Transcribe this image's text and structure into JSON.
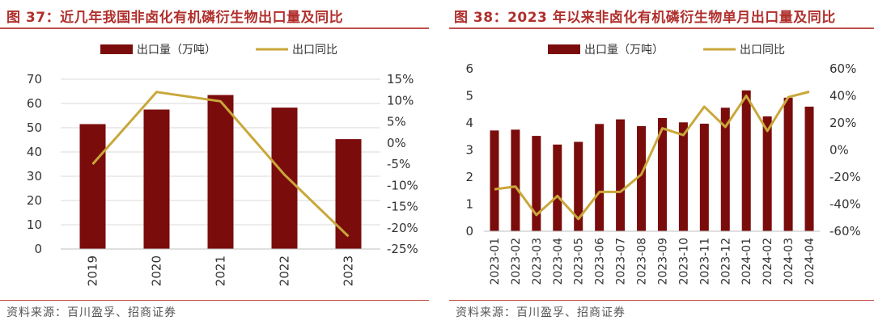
{
  "colors": {
    "bar": "#7b0c0c",
    "line": "#c9a73a",
    "title": "#b0302c",
    "rule": "#c0504d",
    "grid": "#d9d9d9"
  },
  "charts": [
    {
      "title": "图 37：近几年我国非卤化有机磷衍生物出口量及同比",
      "source": "资料来源：百川盈孚、招商证券",
      "legend": {
        "bar_label": "出口量（万吨）",
        "line_label": "出口同比"
      }
    },
    {
      "title": "图 38：2023 年以来非卤化有机磷衍生物单月出口量及同比",
      "source": "资料来源：百川盈孚、招商证券",
      "legend": {
        "bar_label": "出口量（万吨）",
        "line_label": "出口同比"
      }
    }
  ],
  "chart_data": [
    {
      "type": "bar",
      "categories": [
        "2019",
        "2020",
        "2021",
        "2022",
        "2023"
      ],
      "series": [
        {
          "name": "出口量（万吨）",
          "type": "bar",
          "axis": "left",
          "values": [
            51.5,
            57.5,
            63.5,
            58.3,
            45.3
          ]
        },
        {
          "name": "出口同比",
          "type": "line",
          "axis": "right",
          "values": [
            -5.0,
            12.0,
            9.8,
            -7.5,
            -22.0
          ]
        }
      ],
      "y_left": {
        "min": 0,
        "max": 70,
        "ticks": [
          "0",
          "10",
          "20",
          "30",
          "40",
          "50",
          "60",
          "70"
        ]
      },
      "y_right": {
        "min": -25,
        "max": 15,
        "ticks": [
          "-25%",
          "-20%",
          "-15%",
          "-10%",
          "-5%",
          "0%",
          "5%",
          "10%",
          "15%"
        ]
      },
      "grid": true,
      "legend_position": "top"
    },
    {
      "type": "bar",
      "categories": [
        "2023-01",
        "2023-02",
        "2023-03",
        "2023-04",
        "2023-05",
        "2023-06",
        "2023-07",
        "2023-08",
        "2023-09",
        "2023-10",
        "2023-11",
        "2023-12",
        "2024-01",
        "2024-02",
        "2024-03",
        "2024-04"
      ],
      "series": [
        {
          "name": "出口量（万吨）",
          "type": "bar",
          "axis": "left",
          "values": [
            3.72,
            3.75,
            3.52,
            3.2,
            3.3,
            3.96,
            4.13,
            3.88,
            4.18,
            4.02,
            3.97,
            4.56,
            5.2,
            4.24,
            4.93,
            4.6
          ]
        },
        {
          "name": "出口同比",
          "type": "line",
          "axis": "right",
          "values": [
            -29,
            -27,
            -48,
            -34,
            -51,
            -31,
            -31,
            -18,
            16,
            11,
            32,
            17,
            40,
            14,
            39,
            43
          ]
        }
      ],
      "y_left": {
        "min": 0,
        "max": 6,
        "ticks": [
          "0",
          "1",
          "2",
          "3",
          "4",
          "5",
          "6"
        ]
      },
      "y_right": {
        "min": -60,
        "max": 60,
        "ticks": [
          "-60%",
          "-40%",
          "-20%",
          "0%",
          "20%",
          "40%",
          "60%"
        ]
      },
      "grid": false,
      "legend_position": "top"
    }
  ]
}
